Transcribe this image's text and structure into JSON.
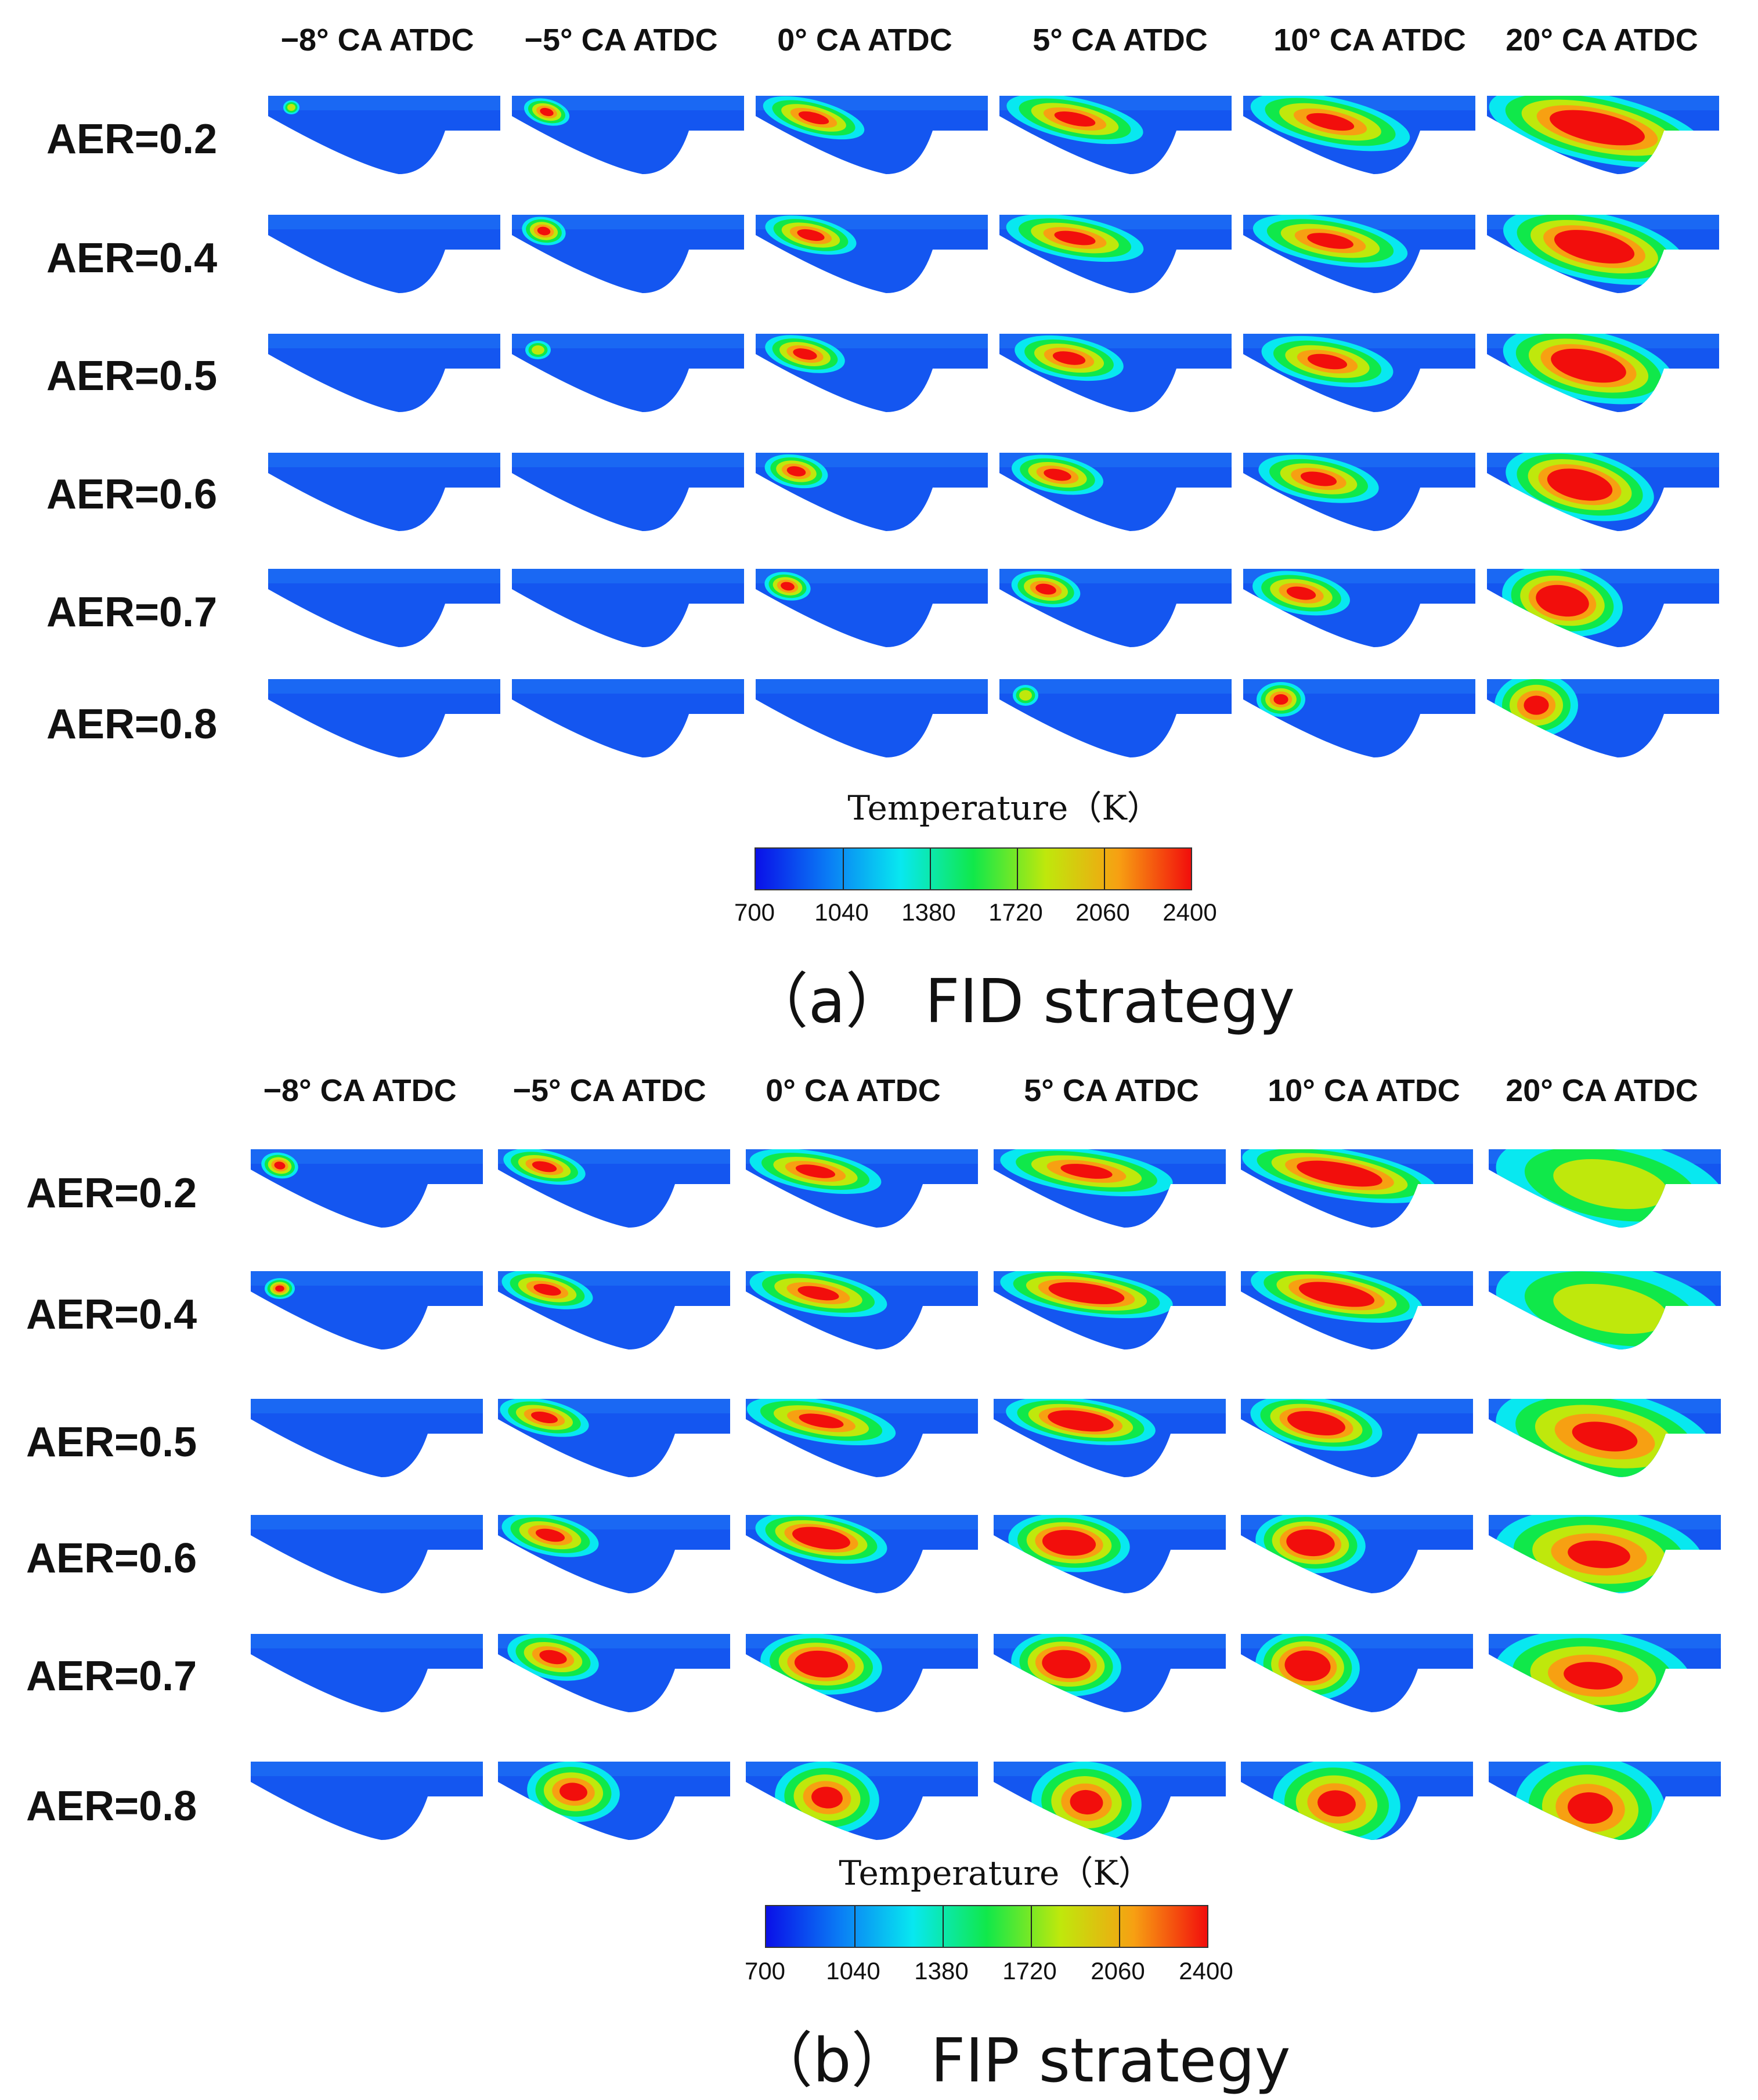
{
  "colorbar_stops": [
    "#0a10e8",
    "#0a7cf5",
    "#08e8f0",
    "#10e84a",
    "#bfe80c",
    "#f7a012",
    "#f20e0c"
  ],
  "scale": {
    "title": "Temperature（K）",
    "ticks": [
      "700",
      "1040",
      "1380",
      "1720",
      "2060",
      "2400"
    ]
  },
  "panels": [
    {
      "caption": "（a） FID strategy",
      "columns": [
        "−8° CA ATDC",
        "−5° CA ATDC",
        "0° CA ATDC",
        "5° CA ATDC",
        "10° CA ATDC",
        "20° CA ATDC"
      ],
      "rows": [
        "AER=0.2",
        "AER=0.4",
        "AER=0.5",
        "AER=0.6",
        "AER=0.7",
        "AER=0.8"
      ]
    },
    {
      "caption": "（b） FIP strategy",
      "columns": [
        "−8° CA ATDC",
        "−5° CA ATDC",
        "0° CA ATDC",
        "5° CA ATDC",
        "10° CA ATDC",
        "20° CA ATDC"
      ],
      "rows": [
        "AER=0.2",
        "AER=0.4",
        "AER=0.5",
        "AER=0.6",
        "AER=0.7",
        "AER=0.8"
      ]
    }
  ]
}
